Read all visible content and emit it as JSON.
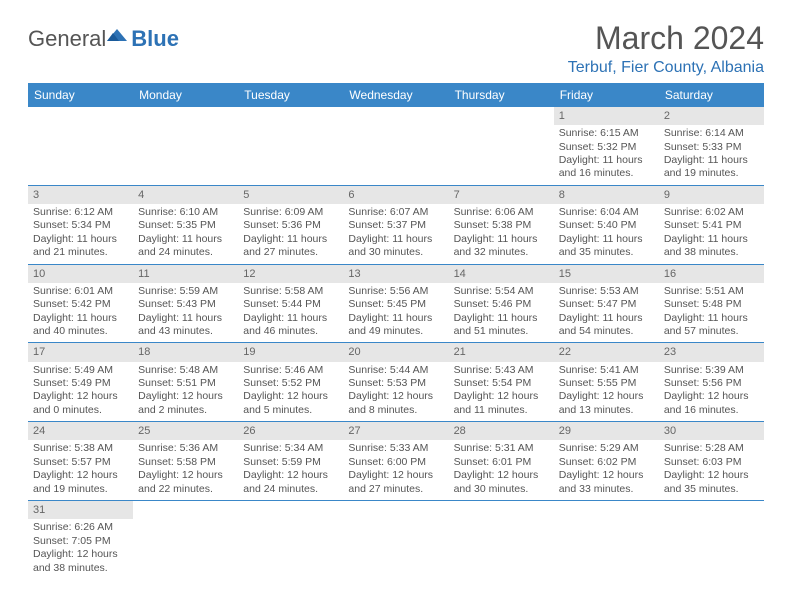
{
  "brand": {
    "general": "General",
    "blue": "Blue"
  },
  "title": "March 2024",
  "location": "Terbuf, Fier County, Albania",
  "colors": {
    "header_bg": "#3a87c8",
    "accent": "#2d72b5",
    "daynum_bg": "#e6e6e6",
    "text": "#555555",
    "row_border": "#3a87c8"
  },
  "dow": [
    "Sunday",
    "Monday",
    "Tuesday",
    "Wednesday",
    "Thursday",
    "Friday",
    "Saturday"
  ],
  "labels": {
    "sunrise": "Sunrise:",
    "sunset": "Sunset:",
    "daylight": "Daylight:"
  },
  "weeks": [
    [
      null,
      null,
      null,
      null,
      null,
      {
        "n": "1",
        "sunrise": "6:15 AM",
        "sunset": "5:32 PM",
        "daylight": "11 hours and 16 minutes."
      },
      {
        "n": "2",
        "sunrise": "6:14 AM",
        "sunset": "5:33 PM",
        "daylight": "11 hours and 19 minutes."
      }
    ],
    [
      {
        "n": "3",
        "sunrise": "6:12 AM",
        "sunset": "5:34 PM",
        "daylight": "11 hours and 21 minutes."
      },
      {
        "n": "4",
        "sunrise": "6:10 AM",
        "sunset": "5:35 PM",
        "daylight": "11 hours and 24 minutes."
      },
      {
        "n": "5",
        "sunrise": "6:09 AM",
        "sunset": "5:36 PM",
        "daylight": "11 hours and 27 minutes."
      },
      {
        "n": "6",
        "sunrise": "6:07 AM",
        "sunset": "5:37 PM",
        "daylight": "11 hours and 30 minutes."
      },
      {
        "n": "7",
        "sunrise": "6:06 AM",
        "sunset": "5:38 PM",
        "daylight": "11 hours and 32 minutes."
      },
      {
        "n": "8",
        "sunrise": "6:04 AM",
        "sunset": "5:40 PM",
        "daylight": "11 hours and 35 minutes."
      },
      {
        "n": "9",
        "sunrise": "6:02 AM",
        "sunset": "5:41 PM",
        "daylight": "11 hours and 38 minutes."
      }
    ],
    [
      {
        "n": "10",
        "sunrise": "6:01 AM",
        "sunset": "5:42 PM",
        "daylight": "11 hours and 40 minutes."
      },
      {
        "n": "11",
        "sunrise": "5:59 AM",
        "sunset": "5:43 PM",
        "daylight": "11 hours and 43 minutes."
      },
      {
        "n": "12",
        "sunrise": "5:58 AM",
        "sunset": "5:44 PM",
        "daylight": "11 hours and 46 minutes."
      },
      {
        "n": "13",
        "sunrise": "5:56 AM",
        "sunset": "5:45 PM",
        "daylight": "11 hours and 49 minutes."
      },
      {
        "n": "14",
        "sunrise": "5:54 AM",
        "sunset": "5:46 PM",
        "daylight": "11 hours and 51 minutes."
      },
      {
        "n": "15",
        "sunrise": "5:53 AM",
        "sunset": "5:47 PM",
        "daylight": "11 hours and 54 minutes."
      },
      {
        "n": "16",
        "sunrise": "5:51 AM",
        "sunset": "5:48 PM",
        "daylight": "11 hours and 57 minutes."
      }
    ],
    [
      {
        "n": "17",
        "sunrise": "5:49 AM",
        "sunset": "5:49 PM",
        "daylight": "12 hours and 0 minutes."
      },
      {
        "n": "18",
        "sunrise": "5:48 AM",
        "sunset": "5:51 PM",
        "daylight": "12 hours and 2 minutes."
      },
      {
        "n": "19",
        "sunrise": "5:46 AM",
        "sunset": "5:52 PM",
        "daylight": "12 hours and 5 minutes."
      },
      {
        "n": "20",
        "sunrise": "5:44 AM",
        "sunset": "5:53 PM",
        "daylight": "12 hours and 8 minutes."
      },
      {
        "n": "21",
        "sunrise": "5:43 AM",
        "sunset": "5:54 PM",
        "daylight": "12 hours and 11 minutes."
      },
      {
        "n": "22",
        "sunrise": "5:41 AM",
        "sunset": "5:55 PM",
        "daylight": "12 hours and 13 minutes."
      },
      {
        "n": "23",
        "sunrise": "5:39 AM",
        "sunset": "5:56 PM",
        "daylight": "12 hours and 16 minutes."
      }
    ],
    [
      {
        "n": "24",
        "sunrise": "5:38 AM",
        "sunset": "5:57 PM",
        "daylight": "12 hours and 19 minutes."
      },
      {
        "n": "25",
        "sunrise": "5:36 AM",
        "sunset": "5:58 PM",
        "daylight": "12 hours and 22 minutes."
      },
      {
        "n": "26",
        "sunrise": "5:34 AM",
        "sunset": "5:59 PM",
        "daylight": "12 hours and 24 minutes."
      },
      {
        "n": "27",
        "sunrise": "5:33 AM",
        "sunset": "6:00 PM",
        "daylight": "12 hours and 27 minutes."
      },
      {
        "n": "28",
        "sunrise": "5:31 AM",
        "sunset": "6:01 PM",
        "daylight": "12 hours and 30 minutes."
      },
      {
        "n": "29",
        "sunrise": "5:29 AM",
        "sunset": "6:02 PM",
        "daylight": "12 hours and 33 minutes."
      },
      {
        "n": "30",
        "sunrise": "5:28 AM",
        "sunset": "6:03 PM",
        "daylight": "12 hours and 35 minutes."
      }
    ],
    [
      {
        "n": "31",
        "sunrise": "6:26 AM",
        "sunset": "7:05 PM",
        "daylight": "12 hours and 38 minutes."
      },
      null,
      null,
      null,
      null,
      null,
      null
    ]
  ]
}
